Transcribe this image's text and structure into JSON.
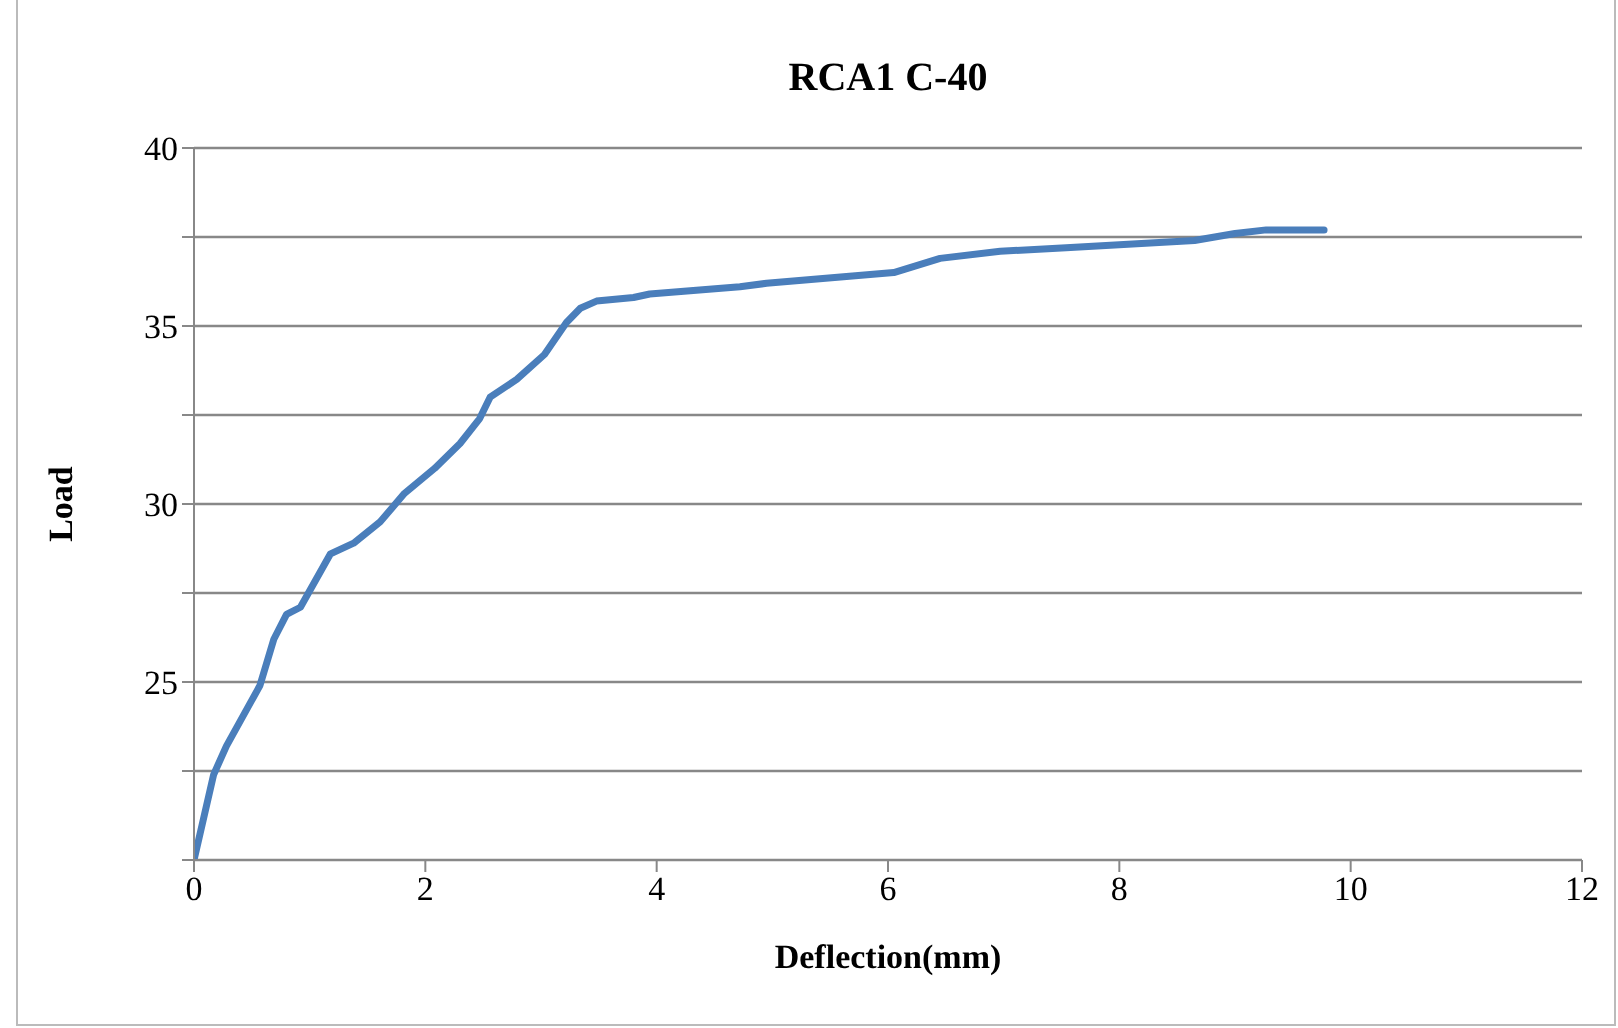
{
  "chart_data": {
    "type": "line",
    "title": "RCA1 C-40",
    "xlabel": "Deflection(mm)",
    "ylabel": "Load",
    "x": [
      0,
      0.17,
      0.28,
      0.57,
      0.69,
      0.8,
      0.92,
      1.18,
      1.38,
      1.61,
      1.82,
      2.08,
      2.3,
      2.47,
      2.56,
      2.79,
      3.03,
      3.22,
      3.34,
      3.48,
      3.8,
      3.94,
      4.72,
      4.95,
      6.05,
      6.45,
      6.97,
      7.54,
      8.65,
      9.0,
      9.27,
      9.77
    ],
    "series": [
      {
        "color": "#4a7ebb",
        "values": [
          20,
          22.4,
          23.2,
          24.9,
          26.2,
          26.9,
          27.1,
          28.6,
          28.9,
          29.5,
          30.3,
          31.0,
          31.7,
          32.4,
          33.0,
          33.5,
          34.2,
          35.1,
          35.5,
          35.7,
          35.8,
          35.9,
          36.1,
          36.2,
          36.5,
          36.9,
          37.1,
          37.2,
          37.4,
          37.6,
          37.7,
          37.7
        ]
      }
    ],
    "xlim": [
      0,
      12
    ],
    "xticks": [
      0,
      2,
      4,
      6,
      8,
      10,
      12
    ],
    "ylim": [
      20,
      40
    ],
    "yticks": [
      {
        "value": 20,
        "label": null
      },
      {
        "value": 22.5,
        "label": null
      },
      25,
      {
        "value": 27.5,
        "label": null
      },
      30,
      {
        "value": 32.5,
        "label": null
      },
      35,
      {
        "value": 37.5,
        "label": null
      },
      40
    ],
    "grid": "y",
    "marker": "none",
    "line_style": "solid"
  }
}
